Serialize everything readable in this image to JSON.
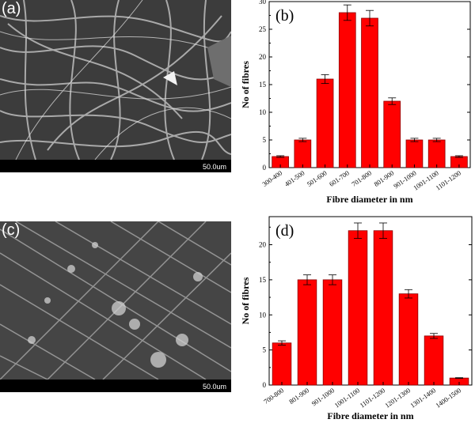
{
  "sem_images": [
    {
      "label": "(a)",
      "scale": "50.0um"
    },
    {
      "label": "(c)",
      "scale": "50.0um"
    }
  ],
  "colors": {
    "bar": "#ff0000",
    "bar_edge": "#8b0000",
    "axis": "#000000"
  },
  "chart_data": [
    {
      "type": "bar",
      "panel_label": "(b)",
      "categories": [
        "300-400",
        "401-500",
        "501-600",
        "601-700",
        "701-800",
        "801-900",
        "901-1000",
        "1001-1100",
        "1101-1200"
      ],
      "values": [
        2,
        5,
        16,
        28,
        27,
        12,
        5,
        5,
        2
      ],
      "errors": [
        0.15,
        0.3,
        0.8,
        1.4,
        1.4,
        0.6,
        0.3,
        0.3,
        0.15
      ],
      "title": "",
      "xlabel": "Fibre diameter in nm",
      "ylabel": "No of fibres",
      "ylim": [
        0,
        30
      ],
      "yticks": [
        0,
        5,
        10,
        15,
        20,
        25,
        30
      ],
      "grid": false
    },
    {
      "type": "bar",
      "panel_label": "(d)",
      "categories": [
        "700-800",
        "801-900",
        "901-1000",
        "1001-1100",
        "1101-1200",
        "1201-1300",
        "1301-1400",
        "1400-1500"
      ],
      "values": [
        6,
        15,
        15,
        22,
        22,
        13,
        7,
        1
      ],
      "errors": [
        0.3,
        0.7,
        0.7,
        1.1,
        1.1,
        0.6,
        0.35,
        0.05
      ],
      "title": "",
      "xlabel": "Fibre diameter in nm",
      "ylabel": "No of fibres",
      "ylim": [
        0,
        24
      ],
      "yticks": [
        0,
        5,
        10,
        15,
        20
      ],
      "grid": false
    }
  ]
}
